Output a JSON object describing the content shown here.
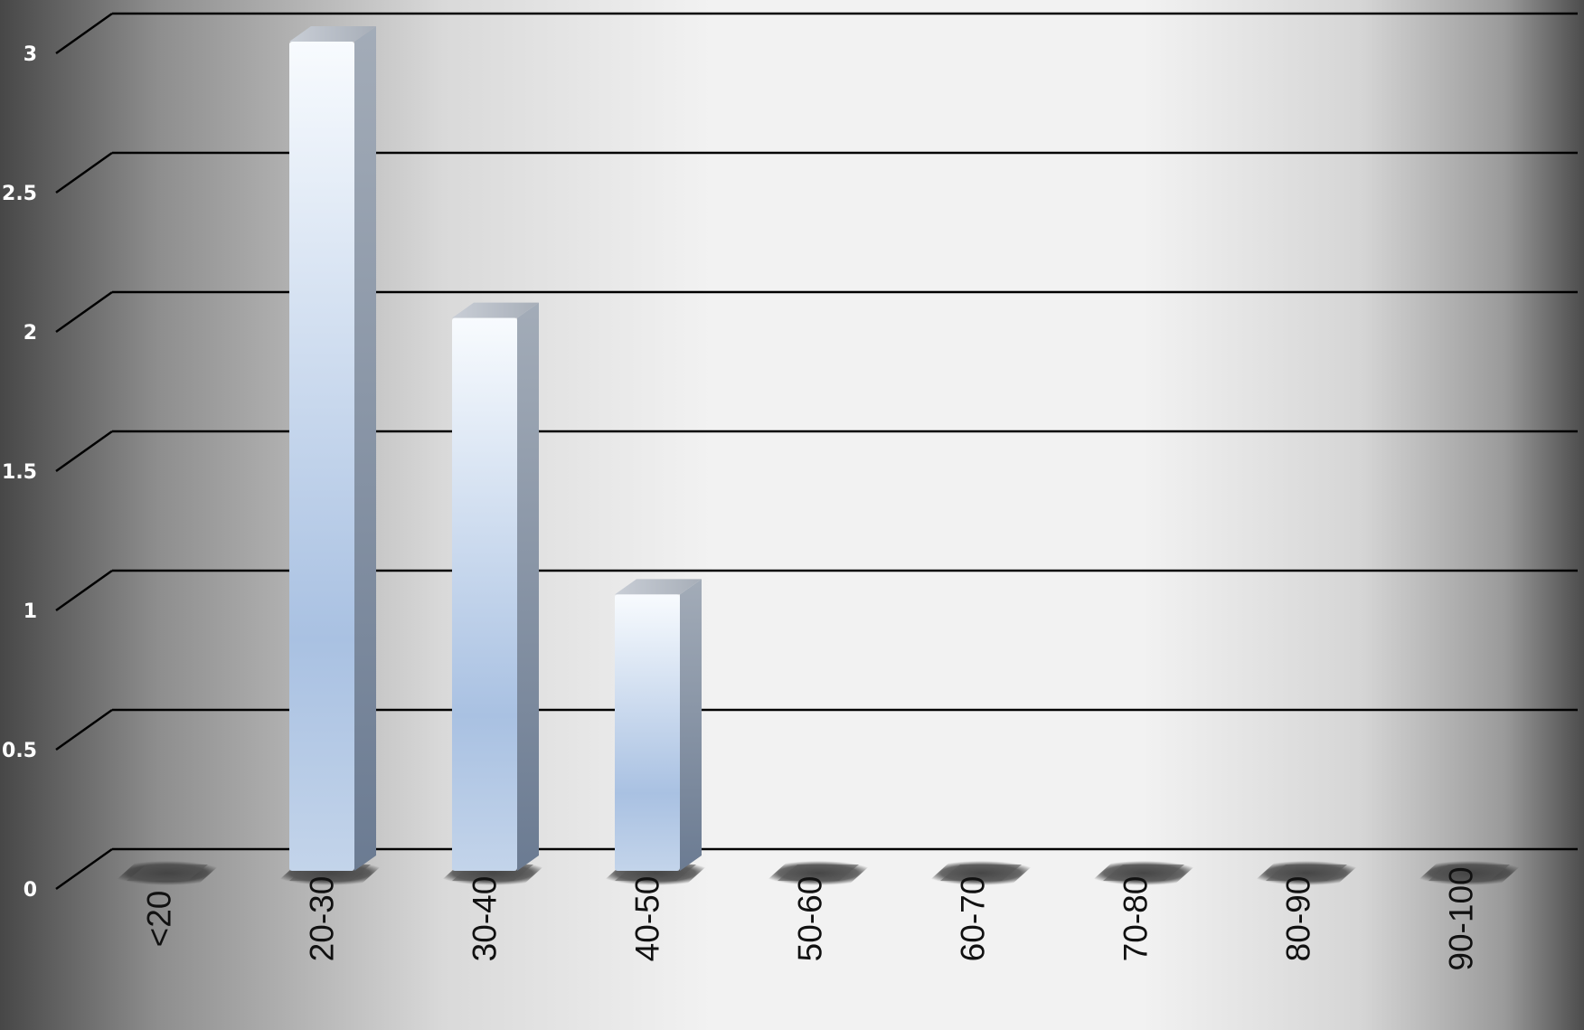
{
  "chart_data": {
    "type": "bar",
    "title": "",
    "xlabel": "",
    "ylabel": "",
    "categories": [
      "<20",
      "20-30",
      "30-40",
      "40-50",
      "50-60",
      "60-70",
      "70-80",
      "80-90",
      "90-100"
    ],
    "values": [
      0,
      3,
      2,
      1,
      0,
      0,
      0,
      0,
      0
    ],
    "ylim": [
      0,
      3
    ],
    "y_ticks": [
      "0",
      "0.5",
      "1",
      "1.5",
      "2",
      "2.5",
      "3"
    ],
    "grid": true,
    "legend": "none",
    "colors": {
      "bar_top": "#f6f9fd",
      "bar_bottom": "#a9c1e2",
      "bar_side": "#6e7f96",
      "grid_line": "#000000",
      "background_edge": "#4a4a4a",
      "background_center": "#f2f2f2"
    }
  }
}
